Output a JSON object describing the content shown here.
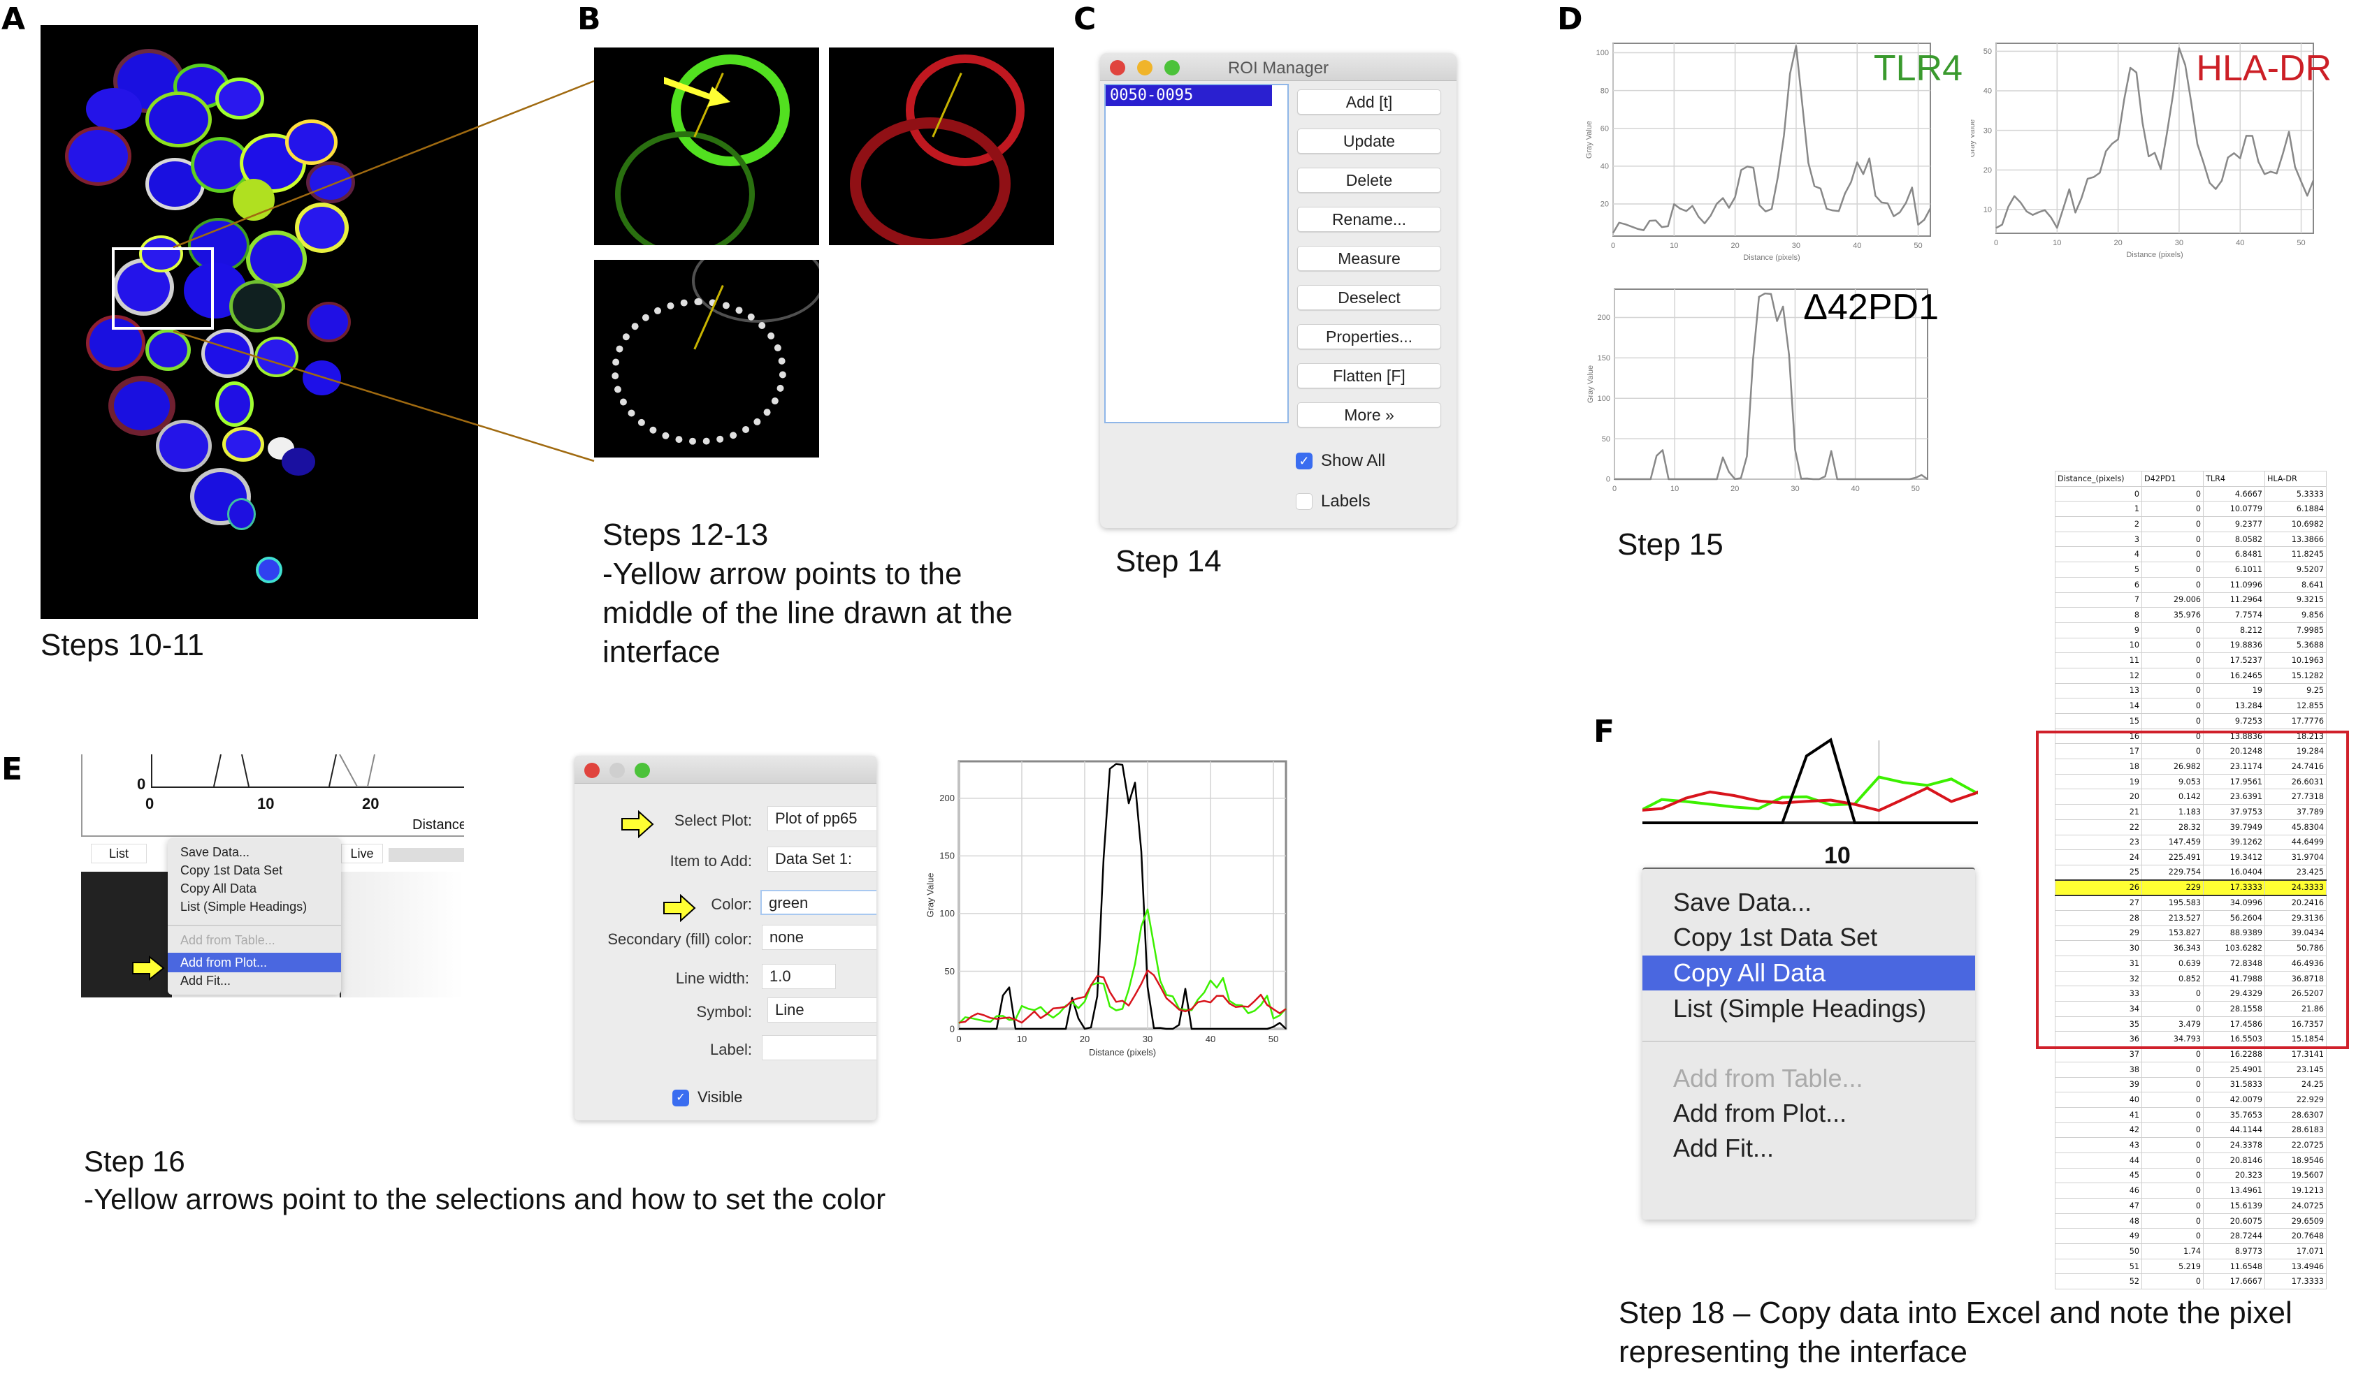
{
  "panels": {
    "A": {
      "letter": "A",
      "caption": "Steps 10-11",
      "image_desc": "Confocal micrograph of cell cluster: blue nuclei, green, red and white membrane staining",
      "roi_box_color": "#ffffff"
    },
    "B": {
      "letter": "B",
      "caption_lines": [
        "Steps 12-13",
        "-Yellow arrow points to the",
        "middle of the line drawn at the",
        "interface"
      ],
      "channels": [
        "green",
        "red",
        "white"
      ],
      "arrow_color": "#ffff33",
      "line_color": "#c8b400"
    },
    "C": {
      "letter": "C",
      "caption": "Step 14",
      "roi_manager": {
        "title": "ROI Manager",
        "list_items": [
          "0050-0095"
        ],
        "buttons": [
          "Add [t]",
          "Update",
          "Delete",
          "Rename...",
          "Measure",
          "Deselect",
          "Properties...",
          "Flatten [F]",
          "More »"
        ],
        "checkboxes": [
          {
            "label": "Show All",
            "checked": true
          },
          {
            "label": "Labels",
            "checked": false
          }
        ]
      }
    },
    "D": {
      "letter": "D",
      "caption": "Step 15",
      "plot_titles": {
        "tlr4": "TLR4",
        "hla": "HLA-DR",
        "pd1": "Δ42PD1"
      },
      "title_colors": {
        "tlr4": "#3a9a2e",
        "hla": "#cc1f26",
        "pd1": "#000000"
      },
      "xlabel": "Distance (pixels)",
      "ylabel": "Gray Value"
    },
    "E": {
      "letter": "E",
      "caption_lines": [
        "Step 16",
        "-Yellow arrows point to the selections and how to set the color"
      ],
      "plot_window": {
        "axis_ticks_x": [
          "0",
          "10",
          "20"
        ],
        "axis_tick_y": "0",
        "xlabel_partial": "Distance",
        "buttons": [
          "List",
          "Live"
        ]
      },
      "more_menu": {
        "items": [
          {
            "label": "Save Data...",
            "state": "normal"
          },
          {
            "label": "Copy 1st Data Set",
            "state": "normal"
          },
          {
            "label": "Copy All Data",
            "state": "normal"
          },
          {
            "label": "List (Simple Headings)",
            "state": "normal"
          },
          {
            "label": "Add from Table...",
            "state": "disabled"
          },
          {
            "label": "Add from Plot...",
            "state": "selected"
          },
          {
            "label": "Add Fit...",
            "state": "normal"
          }
        ]
      },
      "add_from_plot_dialog": {
        "fields": [
          {
            "label": "Select Plot:",
            "value": "Plot of pp65",
            "type": "select"
          },
          {
            "label": "Item to Add:",
            "value": "Data Set 1:",
            "type": "select"
          },
          {
            "label": "Color:",
            "value": "green",
            "type": "text"
          },
          {
            "label": "Secondary (fill) color:",
            "value": "none",
            "type": "text"
          },
          {
            "label": "Line width:",
            "value": "1.0",
            "type": "text"
          },
          {
            "label": "Symbol:",
            "value": "Line",
            "type": "select"
          },
          {
            "label": "Label:",
            "value": "",
            "type": "text"
          }
        ],
        "visible_checkbox": {
          "label": "Visible",
          "checked": true
        }
      }
    },
    "F": {
      "letter": "F",
      "caption_lines": [
        "Step 18 – Copy data into Excel and note the pixel",
        "representing the interface"
      ],
      "zoom_plot_tick": "10",
      "menu": {
        "items": [
          {
            "label": "Save Data...",
            "state": "normal"
          },
          {
            "label": "Copy 1st Data Set",
            "state": "normal"
          },
          {
            "label": "Copy All Data",
            "state": "selected"
          },
          {
            "label": "List (Simple Headings)",
            "state": "normal"
          },
          {
            "label": "Add from Table...",
            "state": "disabled"
          },
          {
            "label": "Add from Plot...",
            "state": "normal"
          },
          {
            "label": "Add Fit...",
            "state": "normal"
          }
        ]
      },
      "table": {
        "headers": [
          "Distance_(pixels)",
          "D42PD1",
          "TLR4",
          "HLA-DR"
        ],
        "highlight_row": 26,
        "highlight_color": "#ffff33",
        "box_rows": [
          16,
          36
        ],
        "box_color": "#d0202a"
      }
    }
  },
  "colors": {
    "green_series": "#3cf000",
    "red_series": "#d8141c",
    "black_series": "#000000",
    "selection_blue": "#4a67e0",
    "yellow_arrow": "#ffff33"
  },
  "chart_data": [
    {
      "type": "table",
      "title": "Line profile data (Excel)",
      "columns": [
        "Distance_(pixels)",
        "D42PD1",
        "TLR4",
        "HLA-DR"
      ],
      "rows": [
        [
          0,
          0,
          4.6667,
          5.3333
        ],
        [
          1,
          0,
          10.0779,
          6.1884
        ],
        [
          2,
          0,
          9.2377,
          10.6982
        ],
        [
          3,
          0,
          8.0582,
          13.3866
        ],
        [
          4,
          0,
          6.8481,
          11.8245
        ],
        [
          5,
          0,
          6.1011,
          9.5207
        ],
        [
          6,
          0,
          11.0996,
          8.641
        ],
        [
          7,
          29.006,
          11.2964,
          9.3215
        ],
        [
          8,
          35.976,
          7.7574,
          9.856
        ],
        [
          9,
          0,
          8.212,
          7.9985
        ],
        [
          10,
          0,
          19.8836,
          5.3688
        ],
        [
          11,
          0,
          17.5237,
          10.1963
        ],
        [
          12,
          0,
          16.2465,
          15.1282
        ],
        [
          13,
          0,
          19,
          9.25
        ],
        [
          14,
          0,
          13.284,
          12.855
        ],
        [
          15,
          0,
          9.7253,
          17.7776
        ],
        [
          16,
          0,
          13.8836,
          18.213
        ],
        [
          17,
          0,
          20.1248,
          19.284
        ],
        [
          18,
          26.982,
          23.1174,
          24.7416
        ],
        [
          19,
          9.053,
          17.9561,
          26.6031
        ],
        [
          20,
          0.142,
          23.6391,
          27.7318
        ],
        [
          21,
          1.183,
          37.9753,
          37.789
        ],
        [
          22,
          28.32,
          39.7949,
          45.8304
        ],
        [
          23,
          147.459,
          39.1262,
          44.6499
        ],
        [
          24,
          225.491,
          19.3412,
          31.9704
        ],
        [
          25,
          229.754,
          16.0404,
          23.425
        ],
        [
          26,
          229,
          17.3333,
          24.3333
        ],
        [
          27,
          195.583,
          34.0996,
          20.2416
        ],
        [
          28,
          213.527,
          56.2604,
          29.3136
        ],
        [
          29,
          153.827,
          88.9389,
          39.0434
        ],
        [
          30,
          36.343,
          103.6282,
          50.786
        ],
        [
          31,
          0.639,
          72.8348,
          46.4936
        ],
        [
          32,
          0.852,
          41.7988,
          36.8718
        ],
        [
          33,
          0,
          29.4329,
          26.5207
        ],
        [
          34,
          0,
          28.1558,
          21.86
        ],
        [
          35,
          3.479,
          17.4586,
          16.7357
        ],
        [
          36,
          34.793,
          16.5503,
          15.1854
        ],
        [
          37,
          0,
          16.2288,
          17.3141
        ],
        [
          38,
          0,
          25.4901,
          23.145
        ],
        [
          39,
          0,
          31.5833,
          24.25
        ],
        [
          40,
          0,
          42.0079,
          22.929
        ],
        [
          41,
          0,
          35.7653,
          28.6307
        ],
        [
          42,
          0,
          44.1144,
          28.6183
        ],
        [
          43,
          0,
          24.3378,
          22.0725
        ],
        [
          44,
          0,
          20.8146,
          18.9546
        ],
        [
          45,
          0,
          20.323,
          19.5607
        ],
        [
          46,
          0,
          13.4961,
          19.1213
        ],
        [
          47,
          0,
          15.6139,
          24.0725
        ],
        [
          48,
          0,
          20.6075,
          29.6509
        ],
        [
          49,
          0,
          28.7244,
          20.7648
        ],
        [
          50,
          1.74,
          8.9773,
          17.071
        ],
        [
          51,
          5.219,
          11.6548,
          13.4946
        ],
        [
          52,
          0,
          17.6667,
          17.3333
        ]
      ]
    },
    {
      "type": "line",
      "title": "TLR4",
      "xlabel": "Distance (pixels)",
      "ylabel": "Gray Value",
      "xlim": [
        0,
        52
      ],
      "ylim": [
        3,
        105
      ],
      "xticks": [
        0,
        10,
        20,
        30,
        40,
        50
      ],
      "yticks": [
        20,
        40,
        60,
        80,
        100
      ],
      "grid": true,
      "series": [
        {
          "name": "TLR4",
          "source_column": "TLR4",
          "color": "#888888"
        }
      ]
    },
    {
      "type": "line",
      "title": "HLA-DR",
      "xlabel": "Distance (pixels)",
      "ylabel": "Gray Value",
      "xlim": [
        0,
        52
      ],
      "ylim": [
        4,
        52
      ],
      "xticks": [
        0,
        10,
        20,
        30,
        40,
        50
      ],
      "yticks": [
        10,
        20,
        30,
        40,
        50
      ],
      "grid": true,
      "series": [
        {
          "name": "HLA-DR",
          "source_column": "HLA-DR",
          "color": "#888888"
        }
      ]
    },
    {
      "type": "line",
      "title": "Δ42PD1",
      "xlabel": "Distance (pixels)",
      "ylabel": "Gray Value",
      "xlim": [
        0,
        52
      ],
      "ylim": [
        0,
        235
      ],
      "xticks": [
        0,
        10,
        20,
        30,
        40,
        50
      ],
      "yticks": [
        0,
        50,
        100,
        150,
        200
      ],
      "grid": true,
      "series": [
        {
          "name": "D42PD1",
          "source_column": "D42PD1",
          "color": "#888888"
        }
      ]
    },
    {
      "type": "line",
      "title": "Overlay (Step 16)",
      "xlabel": "Distance (pixels)",
      "ylabel": "Gray Value",
      "xlim": [
        0,
        52
      ],
      "ylim": [
        0,
        232
      ],
      "xticks": [
        0,
        10,
        20,
        30,
        40,
        50
      ],
      "yticks": [
        0,
        50,
        100,
        150,
        200
      ],
      "grid": true,
      "series": [
        {
          "name": "D42PD1",
          "source_column": "D42PD1",
          "color": "#000000"
        },
        {
          "name": "TLR4",
          "source_column": "TLR4",
          "color": "#3cf000"
        },
        {
          "name": "HLA-DR",
          "source_column": "HLA-DR",
          "color": "#d8141c"
        }
      ]
    }
  ]
}
